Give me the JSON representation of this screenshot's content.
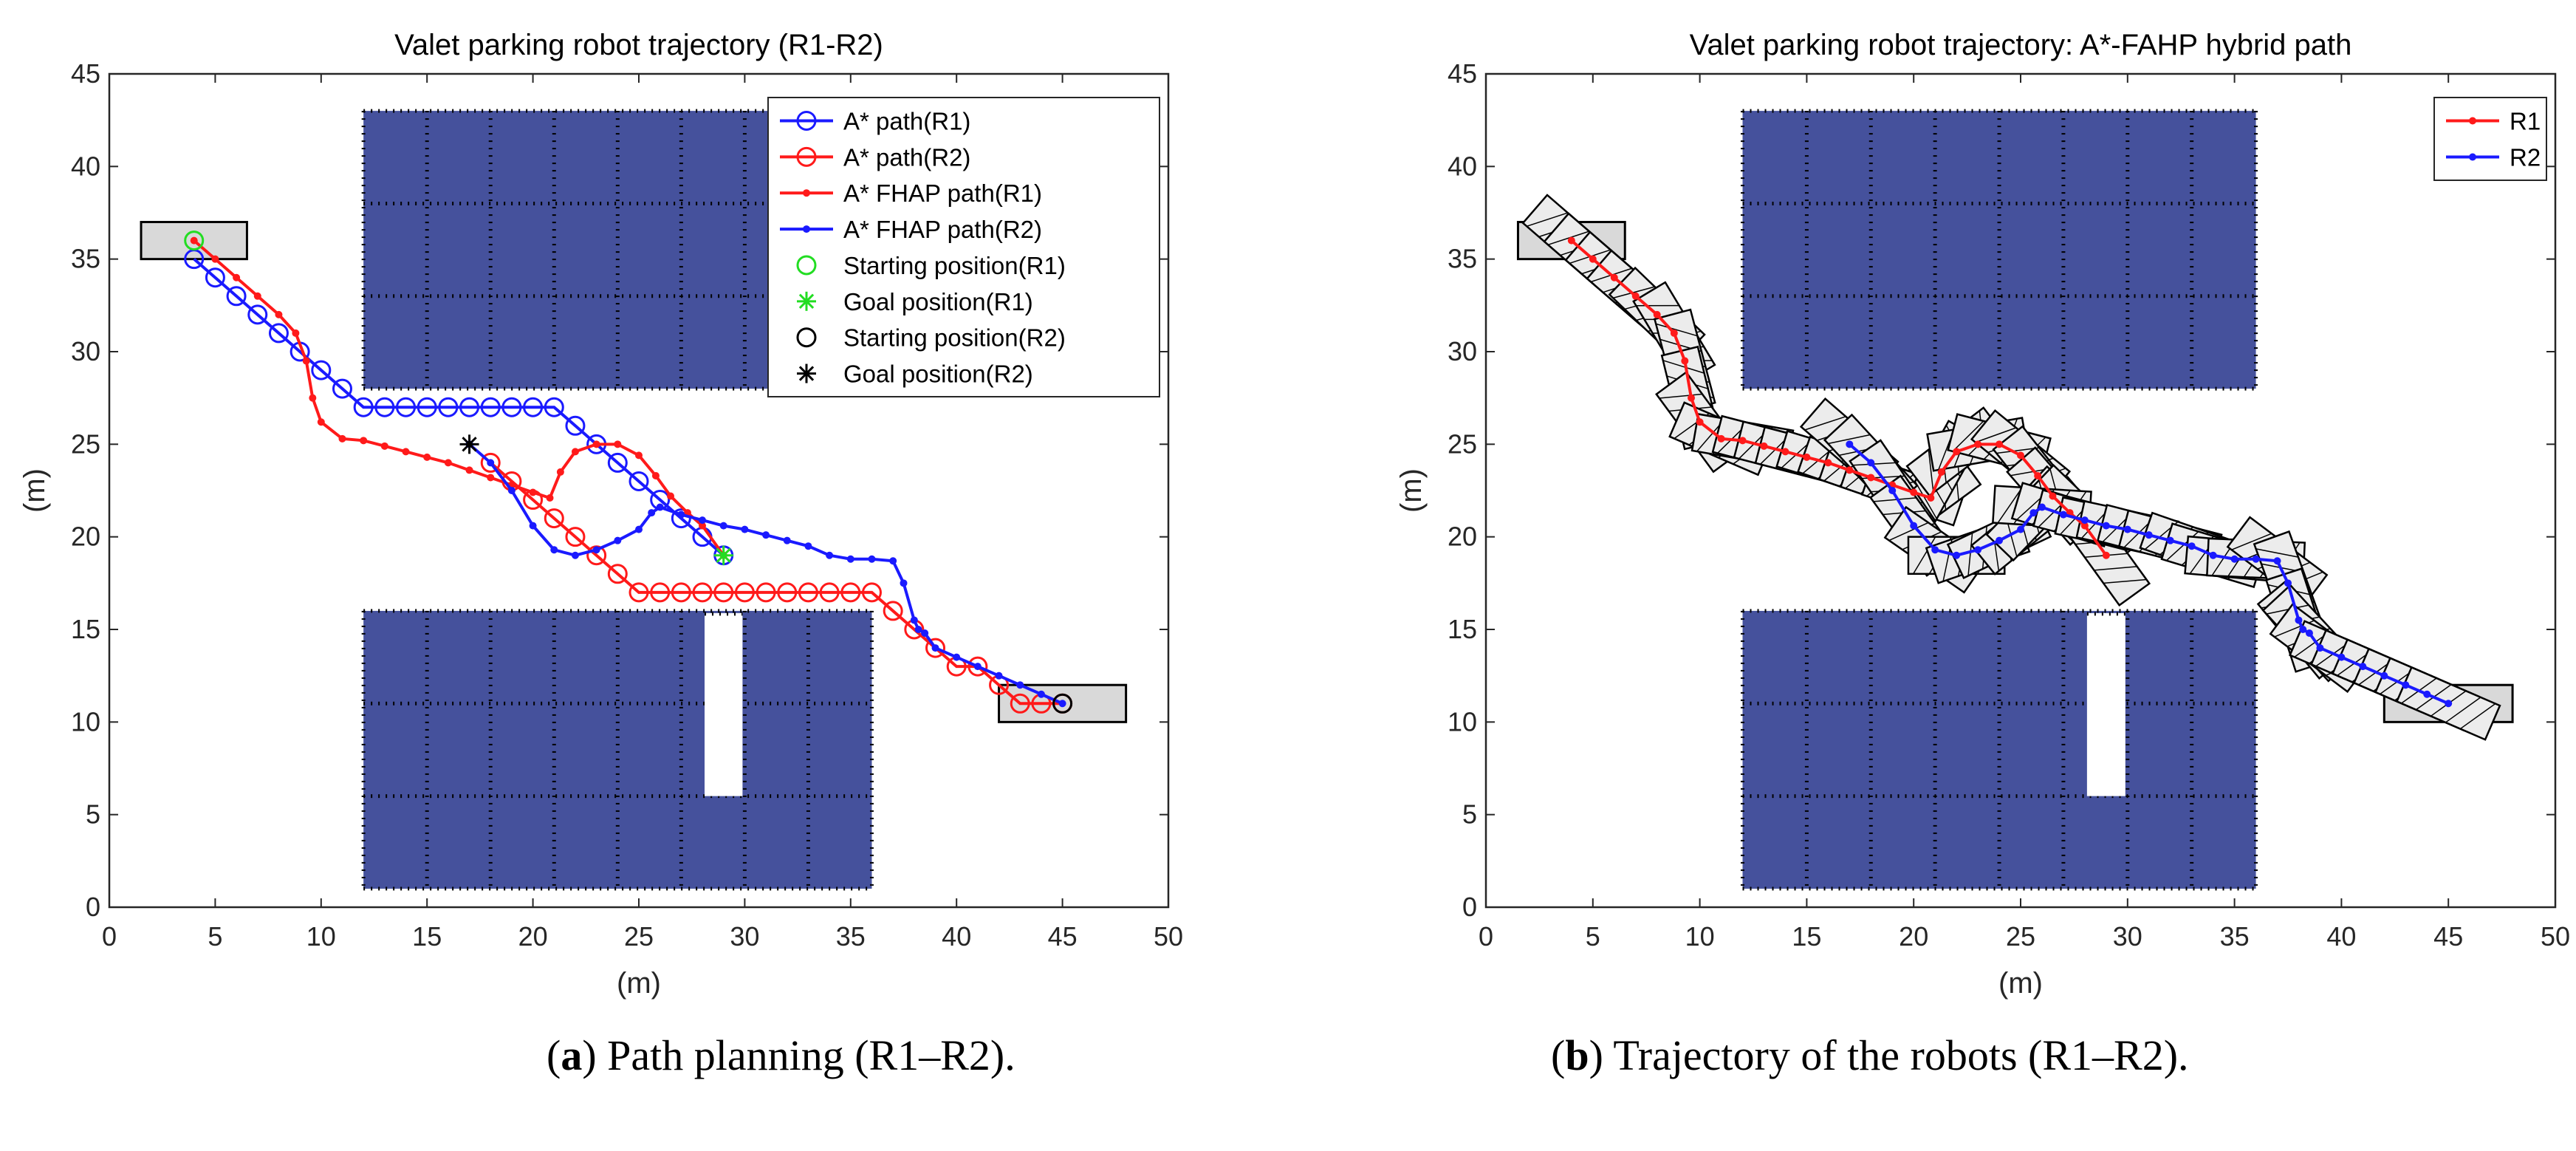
{
  "captions": [
    {
      "letter": "a",
      "text": " Path planning (R1–R2)."
    },
    {
      "letter": "b",
      "text": " Trajectory of the robots (R1–R2)."
    }
  ],
  "colors": {
    "parking_blue": "#45519c",
    "red": "#ff1a1a",
    "blue": "#1a1aff",
    "green": "#22dd22",
    "box_gray": "#d9d9d9"
  },
  "chart_data": [
    {
      "type": "line",
      "title": "Valet parking robot trajectory (R1-R2)",
      "xlabel": "(m)",
      "ylabel": "(m)",
      "xlim": [
        0,
        50
      ],
      "ylim": [
        0,
        45
      ],
      "xticks": [
        0,
        5,
        10,
        15,
        20,
        25,
        30,
        35,
        40,
        45,
        50
      ],
      "yticks": [
        0,
        5,
        10,
        15,
        20,
        25,
        30,
        35,
        40,
        45
      ],
      "grid": false,
      "legend_position": "top-right",
      "parking_blocks": [
        {
          "x": [
            12,
            36
          ],
          "y": [
            28,
            43
          ],
          "columns": 8,
          "rows": 3,
          "gap_x": null
        },
        {
          "x": [
            12,
            36
          ],
          "y": [
            1,
            16
          ],
          "columns": 8,
          "rows": 3,
          "gap_x": [
            28,
            30
          ],
          "gap_y_min": 6
        }
      ],
      "vehicle_boxes": [
        {
          "x": [
            1.5,
            6.5
          ],
          "y": [
            35,
            37
          ]
        },
        {
          "x": [
            42,
            48
          ],
          "y": [
            10,
            12
          ]
        }
      ],
      "series": [
        {
          "name": "A* path(R1)",
          "color": "#1a1aff",
          "marker": "circle-large",
          "x": [
            4,
            5,
            6,
            7,
            8,
            9,
            10,
            11,
            12,
            13,
            14,
            15,
            16,
            17,
            18,
            19,
            20,
            21,
            22,
            23,
            24,
            25,
            26,
            27,
            28,
            29
          ],
          "y": [
            35,
            34,
            33,
            32,
            31,
            30,
            29,
            28,
            27,
            27,
            27,
            27,
            27,
            27,
            27,
            27,
            27,
            27,
            26,
            25,
            24,
            23,
            22,
            21,
            20,
            19
          ]
        },
        {
          "name": "A* path(R2)",
          "color": "#ff1a1a",
          "marker": "circle-large",
          "x": [
            18,
            19,
            20,
            21,
            22,
            23,
            24,
            25,
            26,
            27,
            28,
            29,
            30,
            31,
            32,
            33,
            34,
            35,
            36,
            37,
            38,
            39,
            40,
            41,
            42,
            43,
            44,
            45
          ],
          "y": [
            24,
            23,
            22,
            21,
            20,
            19,
            18,
            17,
            17,
            17,
            17,
            17,
            17,
            17,
            17,
            17,
            17,
            17,
            17,
            16,
            15,
            14,
            13,
            13,
            12,
            11,
            11,
            11
          ]
        },
        {
          "name": "A* FHAP path(R1)",
          "color": "#ff1a1a",
          "marker": "dot",
          "x": [
            4,
            5,
            6,
            7,
            8,
            8.8,
            9.3,
            9.6,
            10,
            11,
            12,
            13,
            14,
            15,
            16,
            17,
            18,
            19,
            20,
            20.8,
            21.3,
            22,
            23,
            24,
            25,
            25.8,
            26.5,
            27.3,
            28,
            29
          ],
          "y": [
            36,
            35,
            34,
            33,
            32,
            31,
            29.5,
            27.5,
            26.2,
            25.3,
            25.2,
            24.9,
            24.6,
            24.3,
            24,
            23.6,
            23.2,
            22.8,
            22.4,
            22.1,
            23.5,
            24.6,
            25,
            25,
            24.4,
            23.3,
            22.2,
            21.3,
            20.6,
            19
          ]
        },
        {
          "name": "A* FHAP path(R2)",
          "color": "#1a1aff",
          "marker": "dot",
          "x": [
            17,
            18,
            19,
            20,
            21,
            22,
            23,
            24,
            25,
            25.6,
            26,
            27,
            28,
            29,
            30,
            31,
            32,
            33,
            34,
            35,
            36,
            37,
            37.5,
            38,
            38.2,
            38.5,
            39,
            40,
            41,
            42,
            43,
            44,
            45
          ],
          "y": [
            25,
            24,
            22.5,
            20.6,
            19.3,
            19,
            19.3,
            19.8,
            20.4,
            21.3,
            21.6,
            21.2,
            20.9,
            20.6,
            20.4,
            20.1,
            19.8,
            19.5,
            19,
            18.8,
            18.8,
            18.7,
            17.5,
            15.5,
            15,
            14.8,
            14,
            13.5,
            13,
            12.5,
            12,
            11.5,
            11
          ]
        },
        {
          "name": "Starting position(R1)",
          "color": "#22dd22",
          "marker": "circle-large",
          "x": [
            4
          ],
          "y": [
            36
          ]
        },
        {
          "name": "Goal position(R1)",
          "color": "#22dd22",
          "marker": "asterisk",
          "x": [
            29
          ],
          "y": [
            19
          ]
        },
        {
          "name": "Starting position(R2)",
          "color": "#000000",
          "marker": "circle-large",
          "x": [
            45
          ],
          "y": [
            11
          ]
        },
        {
          "name": "Goal position(R2)",
          "color": "#000000",
          "marker": "asterisk",
          "x": [
            17
          ],
          "y": [
            25
          ]
        }
      ]
    },
    {
      "type": "line",
      "title": "Valet parking robot trajectory: A*-FAHP hybrid path",
      "xlabel": "(m)",
      "ylabel": "(m)",
      "xlim": [
        0,
        50
      ],
      "ylim": [
        0,
        45
      ],
      "xticks": [
        0,
        5,
        10,
        15,
        20,
        25,
        30,
        35,
        40,
        45,
        50
      ],
      "yticks": [
        0,
        5,
        10,
        15,
        20,
        25,
        30,
        35,
        40,
        45
      ],
      "grid": false,
      "legend_position": "top-right",
      "parking_blocks": [
        {
          "x": [
            12,
            36
          ],
          "y": [
            28,
            43
          ],
          "columns": 8,
          "rows": 3,
          "gap_x": null
        },
        {
          "x": [
            12,
            36
          ],
          "y": [
            1,
            16
          ],
          "columns": 8,
          "rows": 3,
          "gap_x": [
            28,
            30
          ],
          "gap_y_min": 6
        }
      ],
      "vehicle_boxes": [
        {
          "x": [
            1.5,
            6.5
          ],
          "y": [
            35,
            37
          ]
        },
        {
          "x": [
            42,
            48
          ],
          "y": [
            10,
            12
          ]
        }
      ],
      "robot_footprint": {
        "length": 4.5,
        "width": 2
      },
      "series": [
        {
          "name": "R1",
          "color": "#ff1a1a",
          "marker": "dot",
          "x": [
            4,
            5,
            6,
            7,
            8,
            8.8,
            9.3,
            9.6,
            10,
            11,
            12,
            13,
            14,
            15,
            16,
            17,
            18,
            19,
            20,
            20.8,
            21.3,
            22,
            23,
            24,
            25,
            25.8,
            26.5,
            27.3,
            28,
            29
          ],
          "y": [
            36,
            35,
            34,
            33,
            32,
            31,
            29.5,
            27.5,
            26.2,
            25.3,
            25.2,
            24.9,
            24.6,
            24.3,
            24,
            23.6,
            23.2,
            22.8,
            22.4,
            22.1,
            23.5,
            24.6,
            25,
            25,
            24.4,
            23.3,
            22.2,
            21.3,
            20.6,
            19
          ]
        },
        {
          "name": "R2",
          "color": "#1a1aff",
          "marker": "dot",
          "x": [
            17,
            18,
            19,
            20,
            21,
            22,
            23,
            24,
            25,
            25.6,
            26,
            27,
            28,
            29,
            30,
            31,
            32,
            33,
            34,
            35,
            36,
            37,
            37.5,
            38,
            38.2,
            38.5,
            39,
            40,
            41,
            42,
            43,
            44,
            45
          ],
          "y": [
            25,
            24,
            22.5,
            20.6,
            19.3,
            19,
            19.3,
            19.8,
            20.4,
            21.3,
            21.6,
            21.2,
            20.9,
            20.6,
            20.4,
            20.1,
            19.8,
            19.5,
            19,
            18.8,
            18.8,
            18.7,
            17.5,
            15.5,
            15,
            14.8,
            14,
            13.5,
            13,
            12.5,
            12,
            11.5,
            11
          ]
        }
      ]
    }
  ]
}
